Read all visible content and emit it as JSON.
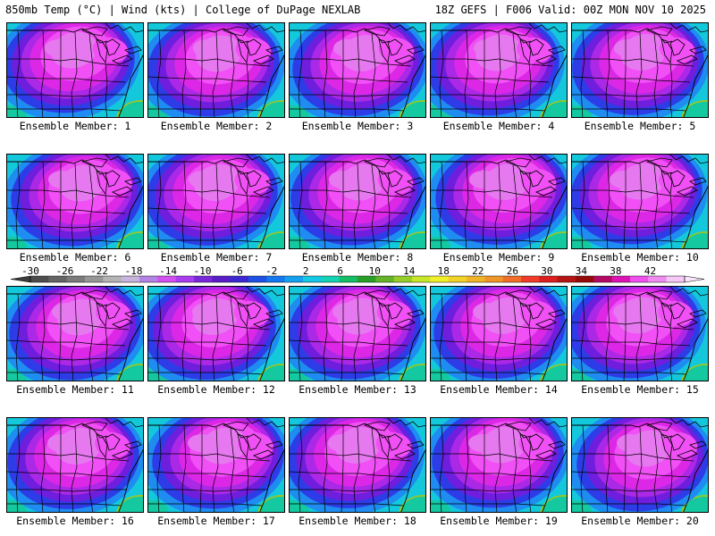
{
  "header": {
    "left_title": "850mb Temp (°C) | Wind (kts) | College of DuPage NEXLAB",
    "right_title": "18Z GEFS | F006 Valid: 00Z MON NOV 10 2025"
  },
  "panels": [
    {
      "label": "Ensemble Member: 1"
    },
    {
      "label": "Ensemble Member: 2"
    },
    {
      "label": "Ensemble Member: 3"
    },
    {
      "label": "Ensemble Member: 4"
    },
    {
      "label": "Ensemble Member: 5"
    },
    {
      "label": "Ensemble Member: 6"
    },
    {
      "label": "Ensemble Member: 7"
    },
    {
      "label": "Ensemble Member: 8"
    },
    {
      "label": "Ensemble Member: 9"
    },
    {
      "label": "Ensemble Member: 10"
    },
    {
      "label": "Ensemble Member: 11"
    },
    {
      "label": "Ensemble Member: 12"
    },
    {
      "label": "Ensemble Member: 13"
    },
    {
      "label": "Ensemble Member: 14"
    },
    {
      "label": "Ensemble Member: 15"
    },
    {
      "label": "Ensemble Member: 16"
    },
    {
      "label": "Ensemble Member: 17"
    },
    {
      "label": "Ensemble Member: 18"
    },
    {
      "label": "Ensemble Member: 19"
    },
    {
      "label": "Ensemble Member: 20"
    }
  ],
  "colorbar": {
    "labels": [
      "-30",
      "-26",
      "-22",
      "-18",
      "-14",
      "-10",
      "-6",
      "-2",
      "2",
      "6",
      "10",
      "14",
      "18",
      "22",
      "26",
      "30",
      "34",
      "38",
      "42"
    ],
    "colors": [
      "#4d4d4d",
      "#646464",
      "#7b7b7b",
      "#969696",
      "#b4b4b4",
      "#c8b4dc",
      "#b482e6",
      "#d250f0",
      "#aa3cf0",
      "#7a28dc",
      "#5a1ec8",
      "#3c28d2",
      "#1e50e6",
      "#1478f0",
      "#14a0f0",
      "#14c8e6",
      "#14d2b4",
      "#14be64",
      "#28a028",
      "#64b428",
      "#96cd28",
      "#c8e628",
      "#f0f028",
      "#f0d228",
      "#f0b428",
      "#f09628",
      "#f06e28",
      "#f03c28",
      "#dc1e1e",
      "#b41414",
      "#960a0a",
      "#b40a64",
      "#dc14b4",
      "#f050f0",
      "#f08cf0",
      "#f5c8f5"
    ],
    "left_arrow_color": "#3c3c3c",
    "right_arrow_color": "#fae6fa"
  },
  "map_colors": {
    "lightest": "#e678f0",
    "light": "#f050f5",
    "magenta": "#dc28e6",
    "purple": "#aa28e6",
    "violet": "#6e1edc",
    "blue": "#2d3ce6",
    "lightblue": "#1e8cf0",
    "cyan": "#14c8dc",
    "teal": "#14c8a0",
    "green": "#96c828"
  }
}
